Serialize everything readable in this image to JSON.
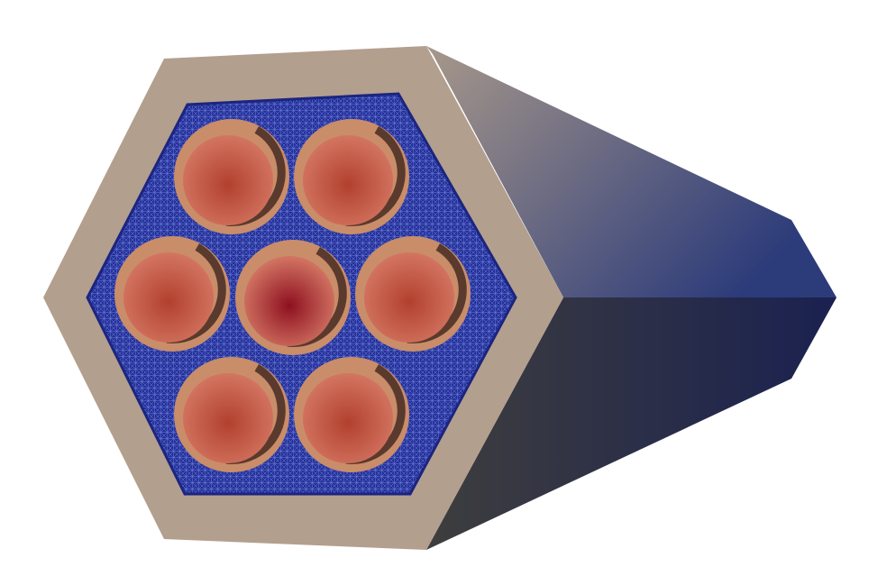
{
  "scene": {
    "subject": "hexagonal-fuel-assembly-render",
    "colors": {
      "background": "#ffffff",
      "duct_face": "#b39f8e",
      "duct_side_top_start": "#a7988a",
      "duct_side_top_end": "#2c3b7a",
      "duct_side_bottom_start": "#3e3e3e",
      "duct_side_bottom_end": "#1a2150",
      "mesh_fill": "#24309a",
      "mesh_line": "#6f7fd6",
      "pin_clad": "#c98d6a",
      "pin_clad_shadow": "#5a3a2c",
      "pin_fuel_core": "#8e1020",
      "pin_fuel_edge": "#d97f6a"
    },
    "pin_count": 7,
    "center_pin_temperature": "highest",
    "mesh_visible": true
  }
}
